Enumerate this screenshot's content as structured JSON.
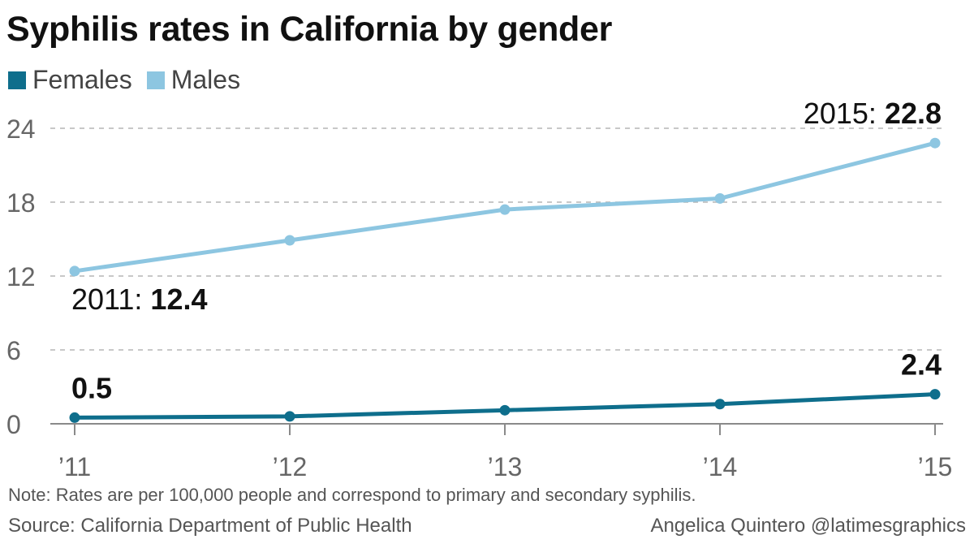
{
  "chart_data": {
    "type": "line",
    "title": "Syphilis rates in California by gender",
    "categories": [
      "’11",
      "’12",
      "’13",
      "’14",
      "’15"
    ],
    "x": [
      2011,
      2012,
      2013,
      2014,
      2015
    ],
    "ylim": [
      0,
      24
    ],
    "yticks": [
      0,
      6,
      12,
      18,
      24
    ],
    "grid": true,
    "legend_position": "top-left",
    "series": [
      {
        "name": "Females",
        "color": "#0e6e8c",
        "values": [
          0.5,
          0.6,
          1.1,
          1.6,
          2.4
        ]
      },
      {
        "name": "Males",
        "color": "#8dc6e1",
        "values": [
          12.4,
          14.9,
          17.4,
          18.3,
          22.8
        ]
      }
    ],
    "annotations": [
      {
        "series": "Males",
        "index": 0,
        "prefix": "2011: ",
        "value": "12.4"
      },
      {
        "series": "Males",
        "index": 4,
        "prefix": "2015: ",
        "value": "22.8"
      },
      {
        "series": "Females",
        "index": 0,
        "prefix": "",
        "value": "0.5"
      },
      {
        "series": "Females",
        "index": 4,
        "prefix": "",
        "value": "2.4"
      }
    ]
  },
  "note": "Note: Rates are per 100,000 people and correspond to primary and secondary syphilis.",
  "source": "Source: California Department of Public Health",
  "credit": "Angelica Quintero @latimesgraphics"
}
